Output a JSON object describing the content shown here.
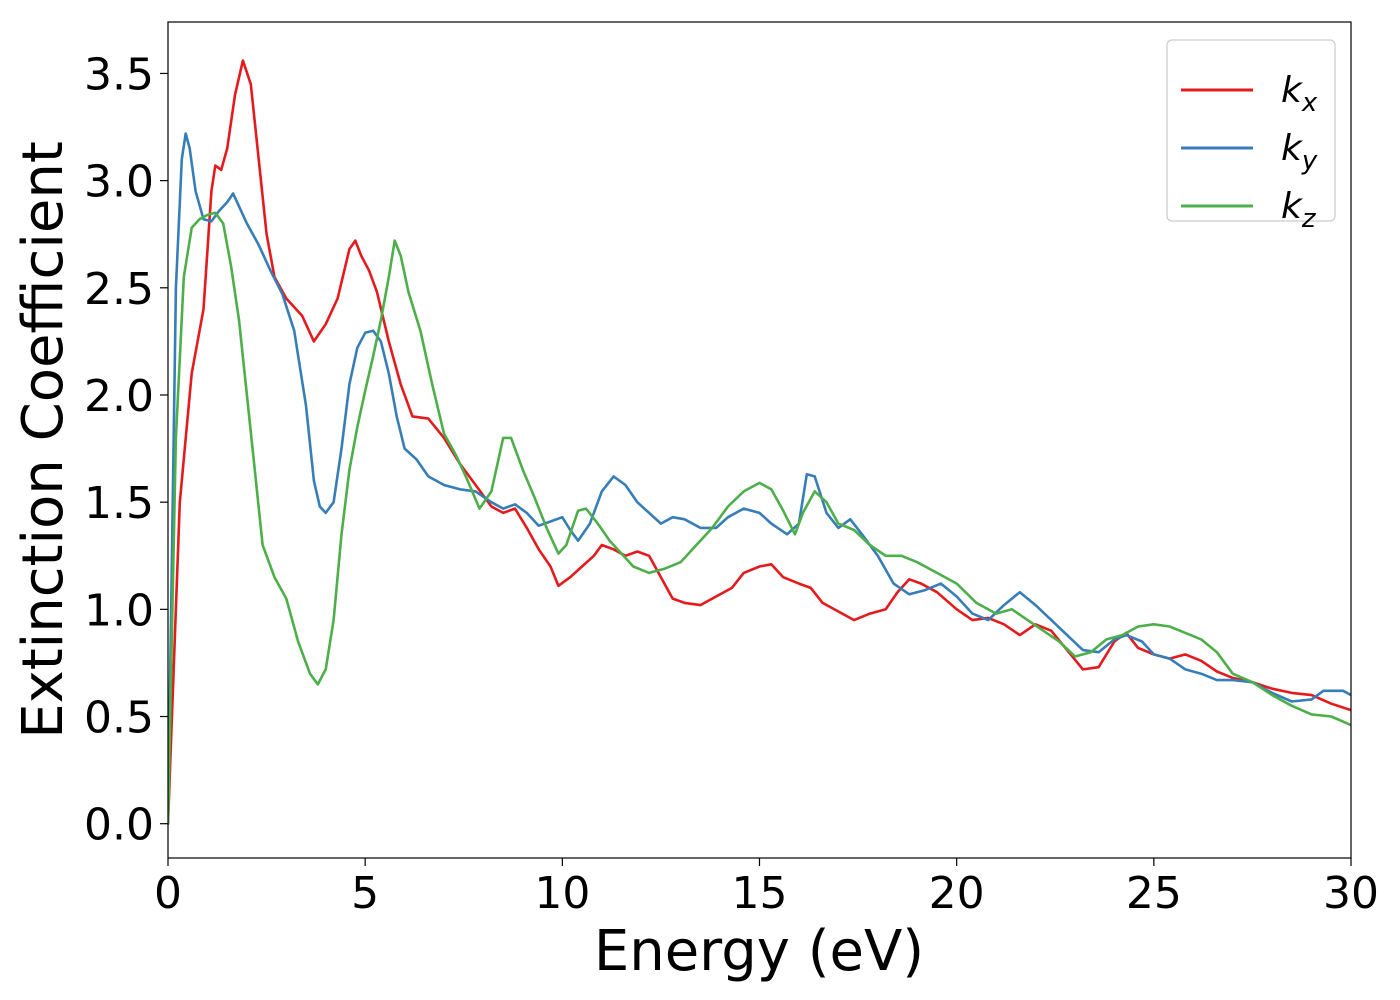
{
  "chart_data": {
    "type": "line",
    "xlabel": "Energy (eV)",
    "ylabel": "Extinction Coefficient",
    "xlim": [
      0,
      30
    ],
    "ylim": [
      -0.16,
      3.74
    ],
    "xticks": [
      0,
      5,
      10,
      15,
      20,
      25,
      30
    ],
    "xtick_labels": [
      "0",
      "5",
      "10",
      "15",
      "20",
      "25",
      "30"
    ],
    "yticks": [
      0.0,
      0.5,
      1.0,
      1.5,
      2.0,
      2.5,
      3.0,
      3.5
    ],
    "ytick_labels": [
      "0.0",
      "0.5",
      "1.0",
      "1.5",
      "2.0",
      "2.5",
      "3.0",
      "3.5"
    ],
    "grid": false,
    "legend_position": "top-right",
    "series": [
      {
        "name": "k",
        "subscript": "x",
        "color": "#e41a1c",
        "points": [
          [
            0,
            0.0
          ],
          [
            0.3,
            1.5
          ],
          [
            0.6,
            2.1
          ],
          [
            0.9,
            2.4
          ],
          [
            1.1,
            2.95
          ],
          [
            1.2,
            3.07
          ],
          [
            1.35,
            3.05
          ],
          [
            1.5,
            3.15
          ],
          [
            1.7,
            3.4
          ],
          [
            1.9,
            3.56
          ],
          [
            2.1,
            3.45
          ],
          [
            2.3,
            3.1
          ],
          [
            2.5,
            2.75
          ],
          [
            2.7,
            2.55
          ],
          [
            3.0,
            2.45
          ],
          [
            3.4,
            2.37
          ],
          [
            3.7,
            2.25
          ],
          [
            4.0,
            2.33
          ],
          [
            4.3,
            2.45
          ],
          [
            4.6,
            2.68
          ],
          [
            4.75,
            2.72
          ],
          [
            4.9,
            2.65
          ],
          [
            5.1,
            2.58
          ],
          [
            5.3,
            2.48
          ],
          [
            5.6,
            2.25
          ],
          [
            5.9,
            2.05
          ],
          [
            6.2,
            1.9
          ],
          [
            6.6,
            1.89
          ],
          [
            7.0,
            1.8
          ],
          [
            7.4,
            1.68
          ],
          [
            7.8,
            1.58
          ],
          [
            8.2,
            1.48
          ],
          [
            8.5,
            1.45
          ],
          [
            8.8,
            1.47
          ],
          [
            9.1,
            1.38
          ],
          [
            9.4,
            1.28
          ],
          [
            9.7,
            1.2
          ],
          [
            9.9,
            1.11
          ],
          [
            10.2,
            1.15
          ],
          [
            10.5,
            1.2
          ],
          [
            10.8,
            1.25
          ],
          [
            11.0,
            1.3
          ],
          [
            11.3,
            1.28
          ],
          [
            11.6,
            1.25
          ],
          [
            11.9,
            1.27
          ],
          [
            12.2,
            1.25
          ],
          [
            12.5,
            1.15
          ],
          [
            12.8,
            1.05
          ],
          [
            13.1,
            1.03
          ],
          [
            13.5,
            1.02
          ],
          [
            13.9,
            1.06
          ],
          [
            14.3,
            1.1
          ],
          [
            14.6,
            1.17
          ],
          [
            15.0,
            1.2
          ],
          [
            15.3,
            1.21
          ],
          [
            15.6,
            1.15
          ],
          [
            16.0,
            1.12
          ],
          [
            16.3,
            1.1
          ],
          [
            16.6,
            1.03
          ],
          [
            17.0,
            0.99
          ],
          [
            17.4,
            0.95
          ],
          [
            17.8,
            0.98
          ],
          [
            18.2,
            1.0
          ],
          [
            18.5,
            1.08
          ],
          [
            18.8,
            1.14
          ],
          [
            19.1,
            1.12
          ],
          [
            19.5,
            1.08
          ],
          [
            20.0,
            1.0
          ],
          [
            20.4,
            0.95
          ],
          [
            20.8,
            0.96
          ],
          [
            21.2,
            0.93
          ],
          [
            21.6,
            0.88
          ],
          [
            22.0,
            0.93
          ],
          [
            22.4,
            0.9
          ],
          [
            22.8,
            0.81
          ],
          [
            23.2,
            0.72
          ],
          [
            23.6,
            0.73
          ],
          [
            24.0,
            0.85
          ],
          [
            24.3,
            0.89
          ],
          [
            24.6,
            0.82
          ],
          [
            25.0,
            0.79
          ],
          [
            25.4,
            0.77
          ],
          [
            25.8,
            0.79
          ],
          [
            26.2,
            0.76
          ],
          [
            26.6,
            0.71
          ],
          [
            27.0,
            0.68
          ],
          [
            27.5,
            0.66
          ],
          [
            28.0,
            0.63
          ],
          [
            28.5,
            0.61
          ],
          [
            29.0,
            0.6
          ],
          [
            29.5,
            0.56
          ],
          [
            30.0,
            0.53
          ]
        ]
      },
      {
        "name": "k",
        "subscript": "y",
        "color": "#377eb8",
        "points": [
          [
            0,
            0.0
          ],
          [
            0.2,
            2.5
          ],
          [
            0.35,
            3.1
          ],
          [
            0.45,
            3.22
          ],
          [
            0.55,
            3.15
          ],
          [
            0.7,
            2.95
          ],
          [
            0.9,
            2.82
          ],
          [
            1.1,
            2.81
          ],
          [
            1.3,
            2.86
          ],
          [
            1.5,
            2.9
          ],
          [
            1.65,
            2.94
          ],
          [
            1.8,
            2.88
          ],
          [
            2.0,
            2.8
          ],
          [
            2.3,
            2.7
          ],
          [
            2.6,
            2.58
          ],
          [
            2.9,
            2.47
          ],
          [
            3.2,
            2.3
          ],
          [
            3.5,
            1.95
          ],
          [
            3.7,
            1.6
          ],
          [
            3.85,
            1.48
          ],
          [
            4.0,
            1.45
          ],
          [
            4.2,
            1.5
          ],
          [
            4.4,
            1.75
          ],
          [
            4.6,
            2.05
          ],
          [
            4.8,
            2.22
          ],
          [
            5.0,
            2.29
          ],
          [
            5.2,
            2.3
          ],
          [
            5.4,
            2.25
          ],
          [
            5.6,
            2.1
          ],
          [
            5.8,
            1.9
          ],
          [
            6.0,
            1.75
          ],
          [
            6.3,
            1.7
          ],
          [
            6.6,
            1.62
          ],
          [
            7.0,
            1.58
          ],
          [
            7.4,
            1.56
          ],
          [
            7.8,
            1.55
          ],
          [
            8.2,
            1.5
          ],
          [
            8.5,
            1.47
          ],
          [
            8.8,
            1.49
          ],
          [
            9.1,
            1.45
          ],
          [
            9.4,
            1.39
          ],
          [
            9.7,
            1.41
          ],
          [
            10.0,
            1.43
          ],
          [
            10.2,
            1.37
          ],
          [
            10.4,
            1.32
          ],
          [
            10.7,
            1.4
          ],
          [
            11.0,
            1.55
          ],
          [
            11.3,
            1.62
          ],
          [
            11.6,
            1.58
          ],
          [
            11.9,
            1.5
          ],
          [
            12.2,
            1.45
          ],
          [
            12.5,
            1.4
          ],
          [
            12.8,
            1.43
          ],
          [
            13.1,
            1.42
          ],
          [
            13.5,
            1.38
          ],
          [
            13.9,
            1.38
          ],
          [
            14.2,
            1.43
          ],
          [
            14.6,
            1.47
          ],
          [
            15.0,
            1.45
          ],
          [
            15.3,
            1.4
          ],
          [
            15.7,
            1.35
          ],
          [
            16.0,
            1.4
          ],
          [
            16.2,
            1.63
          ],
          [
            16.4,
            1.62
          ],
          [
            16.7,
            1.45
          ],
          [
            17.0,
            1.38
          ],
          [
            17.3,
            1.42
          ],
          [
            17.6,
            1.35
          ],
          [
            18.0,
            1.25
          ],
          [
            18.4,
            1.12
          ],
          [
            18.8,
            1.07
          ],
          [
            19.2,
            1.09
          ],
          [
            19.6,
            1.12
          ],
          [
            20.0,
            1.06
          ],
          [
            20.4,
            0.98
          ],
          [
            20.8,
            0.95
          ],
          [
            21.2,
            1.02
          ],
          [
            21.6,
            1.08
          ],
          [
            22.0,
            1.02
          ],
          [
            22.4,
            0.95
          ],
          [
            22.8,
            0.88
          ],
          [
            23.2,
            0.81
          ],
          [
            23.6,
            0.8
          ],
          [
            24.0,
            0.86
          ],
          [
            24.3,
            0.88
          ],
          [
            24.7,
            0.85
          ],
          [
            25.0,
            0.79
          ],
          [
            25.4,
            0.77
          ],
          [
            25.8,
            0.72
          ],
          [
            26.2,
            0.7
          ],
          [
            26.6,
            0.67
          ],
          [
            27.0,
            0.67
          ],
          [
            27.5,
            0.66
          ],
          [
            28.0,
            0.61
          ],
          [
            28.5,
            0.57
          ],
          [
            29.0,
            0.58
          ],
          [
            29.3,
            0.62
          ],
          [
            29.8,
            0.62
          ],
          [
            30.0,
            0.6
          ]
        ]
      },
      {
        "name": "k",
        "subscript": "z",
        "color": "#4daf4a",
        "points": [
          [
            0,
            0.0
          ],
          [
            0.2,
            1.8
          ],
          [
            0.4,
            2.55
          ],
          [
            0.6,
            2.78
          ],
          [
            0.8,
            2.82
          ],
          [
            1.0,
            2.84
          ],
          [
            1.2,
            2.85
          ],
          [
            1.4,
            2.8
          ],
          [
            1.6,
            2.6
          ],
          [
            1.8,
            2.35
          ],
          [
            2.0,
            2.0
          ],
          [
            2.2,
            1.65
          ],
          [
            2.4,
            1.3
          ],
          [
            2.7,
            1.15
          ],
          [
            3.0,
            1.05
          ],
          [
            3.3,
            0.85
          ],
          [
            3.6,
            0.7
          ],
          [
            3.8,
            0.65
          ],
          [
            4.0,
            0.72
          ],
          [
            4.2,
            0.95
          ],
          [
            4.4,
            1.35
          ],
          [
            4.6,
            1.65
          ],
          [
            4.8,
            1.85
          ],
          [
            5.0,
            2.02
          ],
          [
            5.2,
            2.18
          ],
          [
            5.4,
            2.35
          ],
          [
            5.6,
            2.55
          ],
          [
            5.75,
            2.72
          ],
          [
            5.9,
            2.65
          ],
          [
            6.1,
            2.48
          ],
          [
            6.4,
            2.3
          ],
          [
            6.7,
            2.05
          ],
          [
            7.0,
            1.82
          ],
          [
            7.3,
            1.72
          ],
          [
            7.6,
            1.6
          ],
          [
            7.9,
            1.47
          ],
          [
            8.2,
            1.55
          ],
          [
            8.5,
            1.8
          ],
          [
            8.7,
            1.8
          ],
          [
            9.0,
            1.65
          ],
          [
            9.3,
            1.52
          ],
          [
            9.6,
            1.38
          ],
          [
            9.9,
            1.26
          ],
          [
            10.1,
            1.3
          ],
          [
            10.4,
            1.46
          ],
          [
            10.6,
            1.47
          ],
          [
            10.9,
            1.4
          ],
          [
            11.2,
            1.32
          ],
          [
            11.5,
            1.26
          ],
          [
            11.8,
            1.2
          ],
          [
            12.2,
            1.17
          ],
          [
            12.6,
            1.19
          ],
          [
            13.0,
            1.22
          ],
          [
            13.4,
            1.3
          ],
          [
            13.8,
            1.38
          ],
          [
            14.2,
            1.48
          ],
          [
            14.6,
            1.55
          ],
          [
            15.0,
            1.59
          ],
          [
            15.3,
            1.56
          ],
          [
            15.6,
            1.46
          ],
          [
            15.9,
            1.35
          ],
          [
            16.1,
            1.45
          ],
          [
            16.4,
            1.55
          ],
          [
            16.7,
            1.5
          ],
          [
            17.0,
            1.4
          ],
          [
            17.4,
            1.37
          ],
          [
            17.8,
            1.3
          ],
          [
            18.2,
            1.25
          ],
          [
            18.6,
            1.25
          ],
          [
            19.0,
            1.22
          ],
          [
            19.5,
            1.17
          ],
          [
            20.0,
            1.12
          ],
          [
            20.5,
            1.03
          ],
          [
            21.0,
            0.98
          ],
          [
            21.4,
            1.0
          ],
          [
            21.8,
            0.95
          ],
          [
            22.2,
            0.9
          ],
          [
            22.6,
            0.85
          ],
          [
            23.0,
            0.78
          ],
          [
            23.4,
            0.8
          ],
          [
            23.8,
            0.86
          ],
          [
            24.2,
            0.88
          ],
          [
            24.6,
            0.92
          ],
          [
            25.0,
            0.93
          ],
          [
            25.4,
            0.92
          ],
          [
            25.8,
            0.89
          ],
          [
            26.2,
            0.86
          ],
          [
            26.6,
            0.8
          ],
          [
            27.0,
            0.7
          ],
          [
            27.5,
            0.66
          ],
          [
            28.0,
            0.6
          ],
          [
            28.5,
            0.55
          ],
          [
            29.0,
            0.51
          ],
          [
            29.5,
            0.5
          ],
          [
            30.0,
            0.46
          ]
        ]
      }
    ]
  }
}
